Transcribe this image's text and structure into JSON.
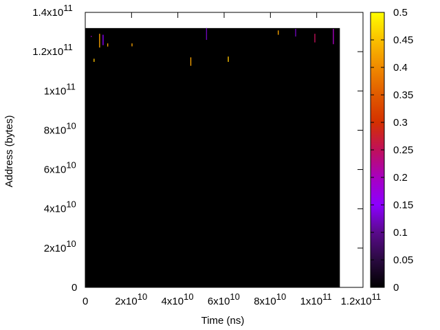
{
  "chart_data": {
    "type": "heatmap",
    "title": "",
    "xlabel": "Time (ns)",
    "ylabel": "Address (bytes)",
    "xlim": [
      0,
      120000000000
    ],
    "ylim": [
      0,
      140000000000
    ],
    "x_ticks": [
      {
        "value": 0,
        "mantissa": "0",
        "exp": ""
      },
      {
        "value": 20000000000,
        "mantissa": "2x10",
        "exp": "10"
      },
      {
        "value": 40000000000,
        "mantissa": "4x10",
        "exp": "10"
      },
      {
        "value": 60000000000,
        "mantissa": "6x10",
        "exp": "10"
      },
      {
        "value": 80000000000,
        "mantissa": "8x10",
        "exp": "10"
      },
      {
        "value": 100000000000,
        "mantissa": "1x10",
        "exp": "11"
      },
      {
        "value": 120000000000,
        "mantissa": "1.2x10",
        "exp": "11"
      }
    ],
    "y_ticks": [
      {
        "value": 0,
        "mantissa": "0",
        "exp": ""
      },
      {
        "value": 20000000000,
        "mantissa": "2x10",
        "exp": "10"
      },
      {
        "value": 40000000000,
        "mantissa": "4x10",
        "exp": "10"
      },
      {
        "value": 60000000000,
        "mantissa": "6x10",
        "exp": "10"
      },
      {
        "value": 80000000000,
        "mantissa": "8x10",
        "exp": "10"
      },
      {
        "value": 100000000000,
        "mantissa": "1x10",
        "exp": "11"
      },
      {
        "value": 120000000000,
        "mantissa": "1.2x10",
        "exp": "11"
      },
      {
        "value": 140000000000,
        "mantissa": "1.4x10",
        "exp": "11"
      }
    ],
    "data_extent": {
      "x_max": 110000000000,
      "y_max": 132000000000
    },
    "background_value": 0,
    "colorbar": {
      "min": 0,
      "max": 0.5,
      "ticks": [
        "0",
        "0.05",
        "0.1",
        "0.15",
        "0.2",
        "0.25",
        "0.3",
        "0.35",
        "0.4",
        "0.45",
        "0.5"
      ],
      "tick_values": [
        0,
        0.05,
        0.1,
        0.15,
        0.2,
        0.25,
        0.3,
        0.35,
        0.4,
        0.45,
        0.5
      ],
      "palette": "gnuplot (black-purple-red-orange-yellow)"
    },
    "grid": false,
    "legend": "colorbar-right",
    "points": [
      {
        "x": 2600000000,
        "y1": 128000000000,
        "y2": 127500000000,
        "value": 0.2
      },
      {
        "x": 3800000000,
        "y1": 116400000000,
        "y2": 114800000000,
        "value": 0.45
      },
      {
        "x": 6200000000,
        "y1": 129100000000,
        "y2": 122100000000,
        "value": 0.42
      },
      {
        "x": 7700000000,
        "y1": 128600000000,
        "y2": 123300000000,
        "value": 0.15
      },
      {
        "x": 9700000000,
        "y1": 124200000000,
        "y2": 122600000000,
        "value": 0.42
      },
      {
        "x": 20200000000,
        "y1": 124200000000,
        "y2": 122700000000,
        "value": 0.42
      },
      {
        "x": 45600000000,
        "y1": 117100000000,
        "y2": 112800000000,
        "value": 0.42
      },
      {
        "x": 52400000000,
        "y1": 132000000000,
        "y2": 126000000000,
        "value": 0.12
      },
      {
        "x": 61800000000,
        "y1": 117500000000,
        "y2": 114800000000,
        "value": 0.45
      },
      {
        "x": 83400000000,
        "y1": 130800000000,
        "y2": 128600000000,
        "value": 0.42
      },
      {
        "x": 90900000000,
        "y1": 131600000000,
        "y2": 127700000000,
        "value": 0.12
      },
      {
        "x": 99200000000,
        "y1": 129100000000,
        "y2": 124700000000,
        "value": 0.25
      },
      {
        "x": 107200000000,
        "y1": 131600000000,
        "y2": 123800000000,
        "value": 0.2
      }
    ]
  }
}
